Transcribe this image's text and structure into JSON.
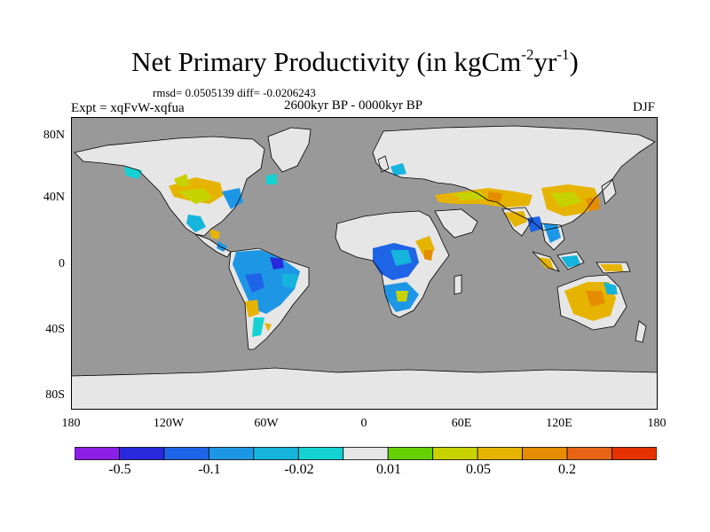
{
  "title": {
    "main": "Net Primary Productivity (in kgCm",
    "exp1": "-2",
    "mid": "yr",
    "exp2": "-1",
    "end": ")"
  },
  "stats": "rmsd= 0.0505139 diff= -0.0206243",
  "experiment": "Expt = xqFvW-xqfua",
  "period": "2600kyr BP - 0000kyr BP",
  "season": "DJF",
  "lat_labels": [
    "80N",
    "40N",
    "0",
    "40S",
    "80S"
  ],
  "lon_labels": [
    "180",
    "120W",
    "60W",
    "0",
    "60E",
    "120E",
    "180"
  ],
  "colors": {
    "ocean": "#999999",
    "land_neutral": "#e6e6e6",
    "coast": "#000000"
  },
  "colorbar": {
    "colors": [
      "#8c1ee6",
      "#2828dc",
      "#1e64e6",
      "#1e96e6",
      "#14b4dc",
      "#14d2d2",
      "#e6e6e6",
      "#64d200",
      "#c8d200",
      "#e6b400",
      "#e68c00",
      "#e66414",
      "#e63200"
    ],
    "labels": [
      "-0.5",
      "-0.1",
      "-0.02",
      "0.01",
      "0.05",
      "0.2"
    ]
  }
}
